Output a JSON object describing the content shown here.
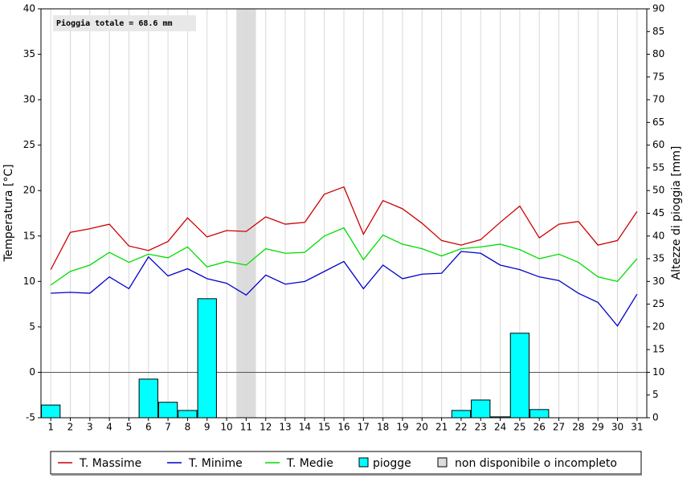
{
  "chart_data": {
    "type": "line",
    "annotation": "Pioggia totale = 68.6 mm",
    "y_label": "Temperatura [°C]",
    "y2_label": "Altezze di pioggia [mm]",
    "categories": [
      "1",
      "2",
      "3",
      "4",
      "5",
      "6",
      "7",
      "8",
      "9",
      "10",
      "11",
      "12",
      "13",
      "14",
      "15",
      "16",
      "17",
      "18",
      "19",
      "20",
      "21",
      "22",
      "23",
      "24",
      "25",
      "26",
      "27",
      "28",
      "29",
      "30",
      "31"
    ],
    "ylim": [
      -5,
      40
    ],
    "yticks": [
      -5,
      0,
      5,
      10,
      15,
      20,
      25,
      30,
      35,
      40
    ],
    "y2lim": [
      0,
      90
    ],
    "y2ticks": [
      0,
      5,
      10,
      15,
      20,
      25,
      30,
      35,
      40,
      45,
      50,
      55,
      60,
      65,
      70,
      75,
      80,
      85,
      90
    ],
    "grid": true,
    "unavailable": [
      "11"
    ],
    "unavailable_label": "non disponibile o incompleto",
    "unavailable_color": "#dcdcdc",
    "series": [
      {
        "name": "T. Massime",
        "type": "line",
        "color": "#cc0000",
        "values": [
          11.3,
          15.4,
          15.8,
          16.3,
          13.9,
          13.4,
          14.4,
          17.0,
          14.9,
          15.6,
          15.5,
          17.1,
          16.3,
          16.5,
          19.6,
          20.4,
          15.2,
          18.9,
          18.0,
          16.4,
          14.5,
          14.0,
          14.6,
          16.5,
          18.3,
          14.8,
          16.3,
          16.6,
          14.0,
          14.5,
          17.7
        ]
      },
      {
        "name": "T. Minime",
        "type": "line",
        "color": "#0000cc",
        "values": [
          8.7,
          8.8,
          8.7,
          10.5,
          9.2,
          12.7,
          10.6,
          11.4,
          10.3,
          9.8,
          8.5,
          10.7,
          9.7,
          10.0,
          11.1,
          12.2,
          9.2,
          11.8,
          10.3,
          10.8,
          10.9,
          13.3,
          13.1,
          11.8,
          11.3,
          10.5,
          10.1,
          8.7,
          7.7,
          5.1,
          8.6
        ]
      },
      {
        "name": "T. Medie",
        "type": "line",
        "color": "#00dd00",
        "values": [
          9.6,
          11.1,
          11.8,
          13.2,
          12.1,
          13.0,
          12.6,
          13.8,
          11.6,
          12.2,
          11.8,
          13.6,
          13.1,
          13.2,
          15.0,
          15.9,
          12.4,
          15.1,
          14.1,
          13.6,
          12.8,
          13.6,
          13.8,
          14.1,
          13.5,
          12.5,
          13.0,
          12.1,
          10.5,
          10.0,
          12.5
        ]
      },
      {
        "name": "piogge",
        "type": "bar",
        "axis": "y2",
        "color": "#00ffff",
        "values": [
          2.8,
          0,
          0,
          0,
          0,
          8.5,
          3.4,
          1.6,
          26.2,
          0,
          null,
          0,
          0,
          0,
          0,
          0,
          0,
          0,
          0,
          0,
          0,
          1.6,
          3.9,
          0.2,
          18.6,
          1.8,
          0,
          0,
          0,
          0,
          0
        ]
      }
    ]
  }
}
